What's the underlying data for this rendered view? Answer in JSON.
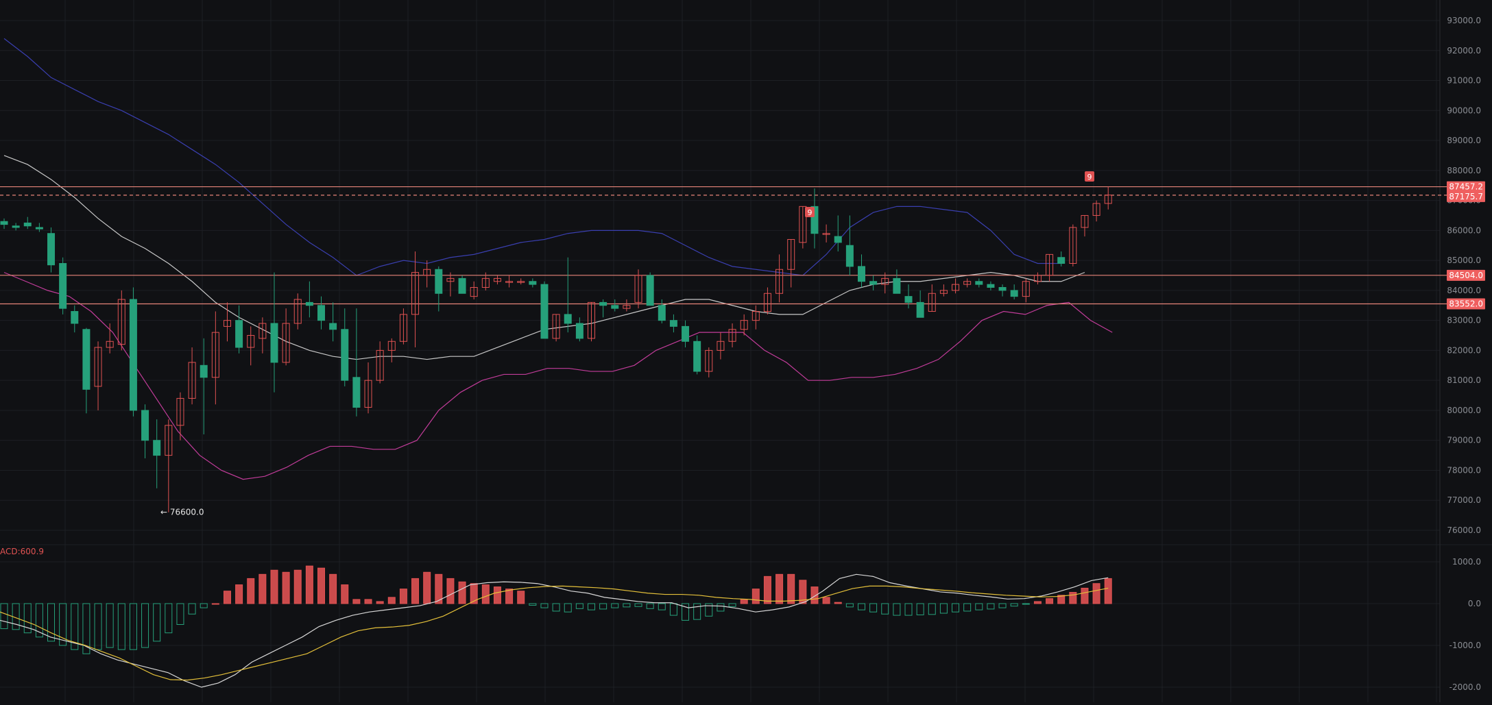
{
  "colors": {
    "background": "#101114",
    "grid": "#1d1f24",
    "axis_text": "#8a8d93",
    "up_candle": "#e05252",
    "down_candle": "#26a17b",
    "bb_upper": "#3a3fb0",
    "bb_middle": "#c9c9c9",
    "bb_lower": "#c23c9a",
    "hline": "#e8857a",
    "price_tag": "#ef5f5f",
    "dif_line": "#d8d8d8",
    "dea_line": "#e5c13a",
    "macd_up": "#e05252",
    "macd_down": "#26a17b"
  },
  "price_axis": {
    "ticks": [
      "93000.0",
      "92000.0",
      "91000.0",
      "90000.0",
      "89000.0",
      "88000.0",
      "87000.0",
      "86000.0",
      "85000.0",
      "84000.0",
      "83000.0",
      "82000.0",
      "81000.0",
      "80000.0",
      "79000.0",
      "78000.0",
      "77000.0",
      "76000.0"
    ]
  },
  "macd_axis": {
    "ticks": [
      "1000.0",
      "0.0",
      "-1000.0",
      "-2000.0"
    ]
  },
  "labels": {
    "macd_title": "ACD:600.9",
    "low_marker": "← 76600.0",
    "td_marker_1": "9",
    "td_marker_2": "9"
  },
  "price_tags": [
    {
      "text": "87457.2",
      "price": 87457.2,
      "style": "solid"
    },
    {
      "text": "87175.7",
      "price": 87175.7,
      "style": "dashed"
    },
    {
      "text": "84504.0",
      "price": 84504.0,
      "style": "solid"
    },
    {
      "text": "83552.0",
      "price": 83552.0,
      "style": "solid"
    }
  ],
  "chart_data": {
    "type": "candlestick",
    "ylim": [
      75600,
      93200
    ],
    "macd_ylim": [
      -2100,
      1300
    ],
    "candles": [
      [
        86300,
        86400,
        86050,
        86200
      ],
      [
        86150,
        86250,
        86000,
        86100
      ],
      [
        86250,
        86450,
        86050,
        86150
      ],
      [
        86100,
        86250,
        85950,
        86050
      ],
      [
        85900,
        86100,
        84600,
        84850
      ],
      [
        84900,
        85100,
        83200,
        83400
      ],
      [
        83300,
        83500,
        82600,
        82900
      ],
      [
        82700,
        82750,
        79900,
        80700
      ],
      [
        80800,
        82300,
        80000,
        82100
      ],
      [
        82100,
        82900,
        81900,
        82300
      ],
      [
        82200,
        84000,
        82000,
        83700
      ],
      [
        83700,
        84100,
        79800,
        80000
      ],
      [
        80000,
        80200,
        78400,
        79000
      ],
      [
        79000,
        79700,
        77400,
        78500
      ],
      [
        78500,
        79700,
        76600,
        79500
      ],
      [
        79500,
        80600,
        79000,
        80400
      ],
      [
        80400,
        82100,
        80200,
        81600
      ],
      [
        81500,
        82400,
        79200,
        81100
      ],
      [
        81100,
        83300,
        80200,
        82600
      ],
      [
        82800,
        83600,
        82300,
        83000
      ],
      [
        83000,
        83500,
        81900,
        82100
      ],
      [
        82100,
        82800,
        81500,
        82500
      ],
      [
        82400,
        83100,
        81900,
        82900
      ],
      [
        82900,
        84600,
        80600,
        81600
      ],
      [
        81600,
        83400,
        81500,
        82900
      ],
      [
        82900,
        83900,
        82700,
        83700
      ],
      [
        83600,
        84300,
        83100,
        83500
      ],
      [
        83500,
        83800,
        82700,
        83000
      ],
      [
        82900,
        83600,
        82300,
        82700
      ],
      [
        82700,
        83400,
        80800,
        81000
      ],
      [
        81100,
        83400,
        79800,
        80100
      ],
      [
        80100,
        81600,
        79900,
        81000
      ],
      [
        81000,
        82300,
        80900,
        82000
      ],
      [
        82000,
        82400,
        81600,
        82300
      ],
      [
        82300,
        83400,
        82200,
        83200
      ],
      [
        83200,
        85300,
        82100,
        84600
      ],
      [
        84500,
        85000,
        84100,
        84700
      ],
      [
        84700,
        84800,
        83300,
        83900
      ],
      [
        84300,
        84600,
        83800,
        84400
      ],
      [
        84400,
        84500,
        83900,
        83900
      ],
      [
        83800,
        84300,
        83700,
        84100
      ],
      [
        84100,
        84600,
        84000,
        84400
      ],
      [
        84300,
        84500,
        84200,
        84400
      ],
      [
        84300,
        84500,
        84100,
        84300
      ],
      [
        84300,
        84400,
        84200,
        84300
      ],
      [
        84300,
        84400,
        84100,
        84200
      ],
      [
        84200,
        84300,
        82400,
        82400
      ],
      [
        82400,
        83200,
        82300,
        83200
      ],
      [
        83200,
        85100,
        82600,
        82900
      ],
      [
        82900,
        83100,
        82300,
        82400
      ],
      [
        82400,
        83600,
        82300,
        83600
      ],
      [
        83600,
        83700,
        83100,
        83500
      ],
      [
        83500,
        83700,
        83300,
        83400
      ],
      [
        83400,
        83700,
        83300,
        83500
      ],
      [
        83600,
        84700,
        83400,
        84500
      ],
      [
        84500,
        84600,
        83500,
        83500
      ],
      [
        83500,
        83700,
        82900,
        83000
      ],
      [
        83000,
        83200,
        82600,
        82800
      ],
      [
        82800,
        83000,
        82100,
        82300
      ],
      [
        82300,
        82500,
        81200,
        81300
      ],
      [
        81300,
        82100,
        81100,
        82000
      ],
      [
        82000,
        82600,
        81700,
        82300
      ],
      [
        82300,
        82900,
        82100,
        82700
      ],
      [
        82700,
        83200,
        82500,
        83000
      ],
      [
        83000,
        83500,
        82700,
        83300
      ],
      [
        83300,
        84100,
        83200,
        83900
      ],
      [
        83900,
        85200,
        83600,
        84700
      ],
      [
        84700,
        85700,
        84100,
        85700
      ],
      [
        85600,
        86800,
        85400,
        86800
      ],
      [
        86800,
        87400,
        85400,
        85900
      ],
      [
        85900,
        86200,
        85600,
        85900
      ],
      [
        85800,
        86500,
        85300,
        85600
      ],
      [
        85500,
        86500,
        84500,
        84800
      ],
      [
        84800,
        85200,
        84100,
        84300
      ],
      [
        84300,
        84500,
        84000,
        84200
      ],
      [
        84200,
        84600,
        83900,
        84400
      ],
      [
        84400,
        84700,
        83900,
        83900
      ],
      [
        83800,
        84200,
        83400,
        83600
      ],
      [
        83600,
        84000,
        83100,
        83100
      ],
      [
        83300,
        84200,
        83300,
        83900
      ],
      [
        83900,
        84200,
        83800,
        84000
      ],
      [
        84000,
        84400,
        83900,
        84200
      ],
      [
        84200,
        84400,
        84100,
        84300
      ],
      [
        84300,
        84400,
        84100,
        84200
      ],
      [
        84200,
        84300,
        84000,
        84100
      ],
      [
        84100,
        84200,
        83800,
        84000
      ],
      [
        84000,
        84200,
        83700,
        83800
      ],
      [
        83800,
        84400,
        83600,
        84300
      ],
      [
        84300,
        84600,
        84200,
        84500
      ],
      [
        84500,
        85200,
        84300,
        85200
      ],
      [
        85100,
        85300,
        84800,
        84900
      ],
      [
        84900,
        86200,
        84800,
        86100
      ],
      [
        86100,
        86500,
        85800,
        86500
      ],
      [
        86500,
        87000,
        86300,
        86900
      ],
      [
        86900,
        87460,
        86700,
        87180
      ]
    ],
    "bb_upper": [
      92400,
      91800,
      91100,
      90700,
      90300,
      90000,
      89600,
      89200,
      88700,
      88200,
      87600,
      86900,
      86200,
      85600,
      85100,
      84500,
      84800,
      85000,
      84900,
      85100,
      85200,
      85400,
      85600,
      85700,
      85900,
      86000,
      86000,
      86000,
      85900,
      85500,
      85100,
      84800,
      84700,
      84600,
      84500,
      85200,
      86100,
      86600,
      86800,
      86800,
      86700,
      86600,
      86000,
      85200,
      84900,
      84900
    ],
    "bb_middle": [
      88500,
      88200,
      87700,
      87100,
      86400,
      85800,
      85400,
      84900,
      84300,
      83600,
      83100,
      82700,
      82300,
      82000,
      81800,
      81700,
      81800,
      81800,
      81700,
      81800,
      81800,
      82100,
      82400,
      82700,
      82800,
      82900,
      83100,
      83300,
      83500,
      83700,
      83700,
      83500,
      83300,
      83200,
      83200,
      83600,
      84000,
      84200,
      84300,
      84300,
      84400,
      84500,
      84600,
      84500,
      84300,
      84300,
      84600
    ],
    "bb_lower": [
      84600,
      84300,
      84000,
      83800,
      83300,
      82600,
      81500,
      80400,
      79300,
      78500,
      78000,
      77700,
      77800,
      78100,
      78500,
      78800,
      78800,
      78700,
      78700,
      79000,
      80000,
      80600,
      81000,
      81200,
      81200,
      81400,
      81400,
      81300,
      81300,
      81500,
      82000,
      82300,
      82600,
      82600,
      82600,
      82000,
      81600,
      81000,
      81000,
      81100,
      81100,
      81200,
      81400,
      81700,
      82300,
      83000,
      83300,
      83200,
      83500,
      83600,
      83000,
      82600
    ],
    "macd_hist": [
      -600,
      -620,
      -700,
      -800,
      -900,
      -1000,
      -1100,
      -1200,
      -1100,
      -1050,
      -1100,
      -1100,
      -1050,
      -900,
      -700,
      -500,
      -250,
      -100,
      0,
      300,
      450,
      600,
      700,
      800,
      750,
      800,
      900,
      850,
      700,
      450,
      100,
      100,
      50,
      150,
      350,
      600,
      750,
      700,
      600,
      520,
      480,
      450,
      400,
      350,
      300,
      -40,
      -100,
      -180,
      -200,
      -120,
      -150,
      -130,
      -100,
      -80,
      -70,
      -120,
      -150,
      -280,
      -400,
      -380,
      -300,
      -180,
      -70,
      100,
      350,
      650,
      700,
      700,
      560,
      400,
      150,
      30,
      -80,
      -150,
      -200,
      -250,
      -280,
      -280,
      -270,
      -260,
      -230,
      -200,
      -180,
      -150,
      -130,
      -100,
      -60,
      -10,
      50,
      120,
      200,
      270,
      370,
      480,
      600
    ],
    "dif": [
      -400,
      -500,
      -620,
      -800,
      -900,
      -1000,
      -1200,
      -1350,
      -1450,
      -1550,
      -1650,
      -1850,
      -2000,
      -1900,
      -1700,
      -1400,
      -1200,
      -1000,
      -800,
      -550,
      -400,
      -280,
      -200,
      -150,
      -100,
      -50,
      50,
      250,
      450,
      500,
      520,
      510,
      480,
      400,
      300,
      250,
      150,
      100,
      50,
      20,
      20,
      -100,
      -50,
      -60,
      -120,
      -200,
      -150,
      -80,
      50,
      300,
      600,
      700,
      650,
      500,
      420,
      350,
      280,
      250,
      200,
      160,
      110,
      120,
      180,
      280,
      400,
      550,
      620
    ],
    "dea": [
      -200,
      -350,
      -500,
      -700,
      -880,
      -1000,
      -1150,
      -1300,
      -1500,
      -1700,
      -1820,
      -1830,
      -1780,
      -1700,
      -1600,
      -1500,
      -1400,
      -1300,
      -1200,
      -1000,
      -800,
      -650,
      -580,
      -560,
      -520,
      -430,
      -300,
      -100,
      100,
      250,
      330,
      380,
      410,
      420,
      400,
      380,
      350,
      300,
      250,
      220,
      220,
      200,
      150,
      120,
      100,
      60,
      60,
      80,
      120,
      240,
      360,
      420,
      420,
      400,
      360,
      330,
      300,
      260,
      230,
      200,
      180,
      160,
      170,
      210,
      290,
      370
    ],
    "xlabels": []
  }
}
